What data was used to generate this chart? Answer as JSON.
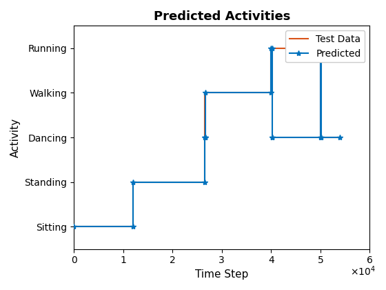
{
  "title": "Predicted Activities",
  "xlabel": "Time Step",
  "ylabel": "Activity",
  "ytick_vals": [
    1,
    2,
    3,
    4,
    5
  ],
  "ytick_labels": [
    "Sitting",
    "Standing",
    "Dancing",
    "Walking",
    "Running"
  ],
  "xlim": [
    0,
    60000
  ],
  "ylim": [
    0.5,
    5.5
  ],
  "xtick_vals": [
    0,
    10000,
    20000,
    30000,
    40000,
    50000,
    60000
  ],
  "xtick_labels": [
    "0",
    "1",
    "2",
    "3",
    "4",
    "5",
    "6"
  ],
  "predicted_x": [
    0,
    12000,
    12000,
    26500,
    26500,
    26700,
    26700,
    40000,
    40000,
    40200,
    40200,
    50000,
    50000,
    50200,
    50200,
    54000
  ],
  "predicted_y": [
    1,
    1,
    2,
    2,
    3,
    3,
    4,
    4,
    5,
    5,
    3,
    3,
    5,
    5,
    3,
    3
  ],
  "testdata_x": [
    0,
    12000,
    12000,
    26500,
    26500,
    40000,
    40000,
    50000,
    50000,
    54000
  ],
  "testdata_y": [
    1,
    1,
    2,
    2,
    4,
    4,
    5,
    5,
    3,
    3
  ],
  "predicted_color": "#0072BD",
  "testdata_color": "#D95319",
  "predicted_marker": "*",
  "marker_size": 6,
  "linewidth": 1.5,
  "title_fontsize": 13,
  "label_fontsize": 11,
  "tick_fontsize": 10
}
